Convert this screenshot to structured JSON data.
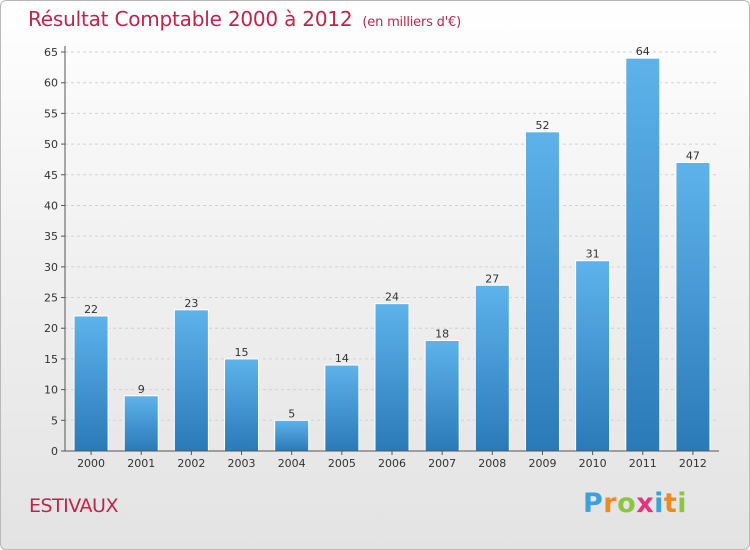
{
  "chart_data": {
    "type": "bar",
    "title": "Résultat Comptable 2000 à 2012",
    "subtitle": "(en milliers d'€)",
    "categories": [
      "2000",
      "2001",
      "2002",
      "2003",
      "2004",
      "2005",
      "2006",
      "2007",
      "2008",
      "2009",
      "2010",
      "2011",
      "2012"
    ],
    "values": [
      22,
      9,
      23,
      15,
      5,
      14,
      24,
      18,
      27,
      52,
      31,
      64,
      47
    ],
    "ylim": [
      0,
      65
    ],
    "yticks": [
      0,
      5,
      10,
      15,
      20,
      25,
      30,
      35,
      40,
      45,
      50,
      55,
      60,
      65
    ],
    "grid": true,
    "xlabel": "",
    "ylabel": ""
  },
  "location": "ESTIVAUX",
  "brand": {
    "name": "Proxiti",
    "letters": [
      "P",
      "r",
      "o",
      "x",
      "i",
      "t",
      "i"
    ],
    "letter_colors": [
      "#3aa0e0",
      "#f08a1c",
      "#8cc63f",
      "#e8327c",
      "#3aa0e0",
      "#f08a1c",
      "#8cc63f"
    ]
  },
  "colors": {
    "title": "#c0244a",
    "bar_top": "#5eb3eb",
    "bar_bottom": "#2a7ab8",
    "bar_edge": "#ffffff",
    "grid": "#d2d2d2",
    "axis": "#555555"
  }
}
